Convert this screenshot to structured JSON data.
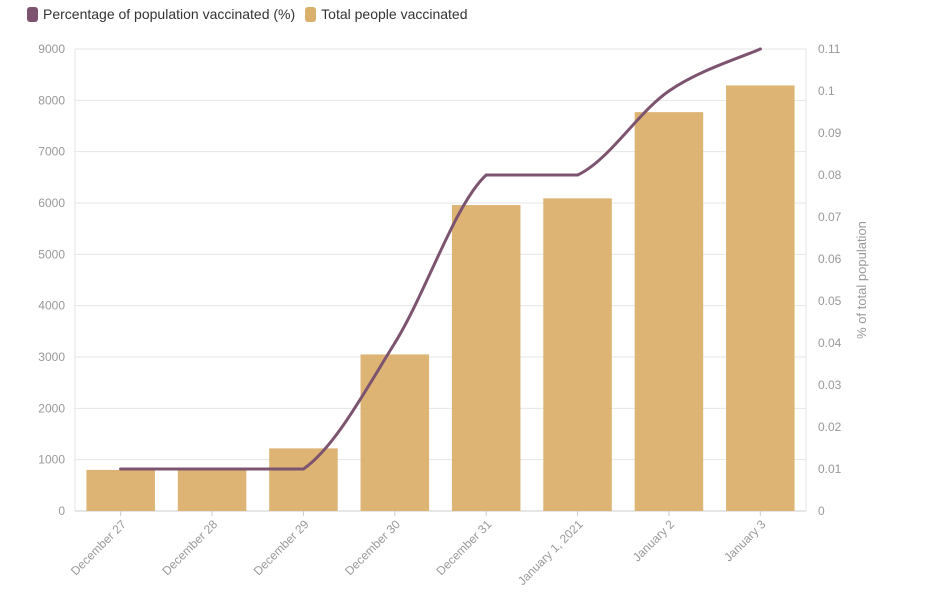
{
  "chart_data": {
    "type": "bar",
    "categories": [
      "December 27",
      "December 28",
      "December 29",
      "December 30",
      "December 31",
      "January 1, 2021",
      "January 2",
      "January 3"
    ],
    "series": [
      {
        "name": "Total people vaccinated",
        "type": "bar",
        "axis": "left",
        "color": "#dbb06d",
        "values": [
          800,
          800,
          1220,
          3050,
          5960,
          6090,
          7770,
          8290
        ]
      },
      {
        "name": "Percentage of population vaccinated (%)",
        "type": "line",
        "axis": "right",
        "color": "#7d5470",
        "values": [
          0.01,
          0.01,
          0.01,
          0.04,
          0.08,
          0.08,
          0.1,
          0.11
        ]
      }
    ],
    "yaxis_left": {
      "min": 0,
      "max": 9000,
      "ticks": [
        "0",
        "1000",
        "2000",
        "3000",
        "4000",
        "5000",
        "6000",
        "7000",
        "8000",
        "9000"
      ]
    },
    "yaxis_right": {
      "min": 0,
      "max": 0.11,
      "ticks": [
        "0",
        "0.01",
        "0.02",
        "0.03",
        "0.04",
        "0.05",
        "0.06",
        "0.07",
        "0.08",
        "0.09",
        "0.1",
        "0.11"
      ],
      "label": "% of total population"
    },
    "legend_position": "top-left",
    "grid": true
  }
}
